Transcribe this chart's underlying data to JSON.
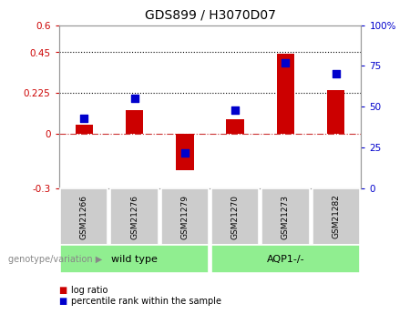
{
  "title": "GDS899 / H3070D07",
  "samples": [
    "GSM21266",
    "GSM21276",
    "GSM21279",
    "GSM21270",
    "GSM21273",
    "GSM21282"
  ],
  "log_ratio": [
    0.05,
    0.13,
    -0.2,
    0.08,
    0.44,
    0.24
  ],
  "percentile_rank": [
    43,
    55,
    22,
    48,
    77,
    70
  ],
  "group_wt": [
    0,
    1,
    2
  ],
  "group_aqp": [
    3,
    4,
    5
  ],
  "group_wt_label": "wild type",
  "group_aqp_label": "AQP1-/-",
  "bar_color": "#CC0000",
  "dot_color": "#0000CC",
  "left_ylim": [
    -0.3,
    0.6
  ],
  "right_ylim": [
    0,
    100
  ],
  "left_yticks": [
    -0.3,
    0.0,
    0.225,
    0.45,
    0.6
  ],
  "right_yticks": [
    0,
    25,
    50,
    75,
    100
  ],
  "hline_y": [
    0.225,
    0.45
  ],
  "dotted_line_color": "black",
  "zero_line_color": "#CC3333",
  "bar_width": 0.35,
  "group_label": "genotype/variation",
  "legend_items": [
    {
      "label": "log ratio",
      "color": "#CC0000"
    },
    {
      "label": "percentile rank within the sample",
      "color": "#0000CC"
    }
  ],
  "title_fontsize": 10,
  "tick_fontsize": 7.5,
  "sample_box_color": "#CCCCCC",
  "group_box_color": "#90EE90"
}
